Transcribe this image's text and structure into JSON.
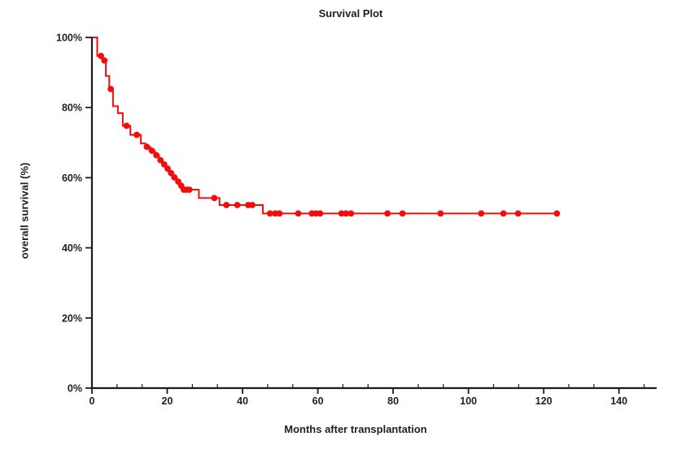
{
  "figure": {
    "title": "Survival Plot",
    "x_axis_label": "Months after transplantation",
    "y_axis_label": "overall survival  (%)"
  },
  "colors": {
    "background": "#ffffff",
    "axis": "#1c1c1c",
    "text": "#1f1f1f",
    "curve": "#f20d0d"
  },
  "chart_data": {
    "type": "line",
    "subtype": "kaplan-meier-step",
    "title": "Survival Plot",
    "xlabel": "Months after transplantation",
    "ylabel": "overall survival (%)",
    "xlim": [
      0,
      150
    ],
    "ylim": [
      0,
      100
    ],
    "x_major_ticks": [
      0,
      20,
      40,
      60,
      80,
      100,
      120,
      140
    ],
    "x_minor_tick_step": 6.6667,
    "y_major_ticks": [
      0,
      20,
      40,
      60,
      80,
      100
    ],
    "y_tick_suffix": "%",
    "grid": false,
    "legend_position": "none",
    "series": [
      {
        "name": "overall survival",
        "color": "#f20d0d",
        "start": [
          0,
          100
        ],
        "steps": [
          [
            1.4,
            94.7
          ],
          [
            2.8,
            93.4
          ],
          [
            3.7,
            89.0
          ],
          [
            4.6,
            85.3
          ],
          [
            5.6,
            80.4
          ],
          [
            6.9,
            78.4
          ],
          [
            8.2,
            74.8
          ],
          [
            10.2,
            72.2
          ],
          [
            13.0,
            69.8
          ],
          [
            14.2,
            68.8
          ],
          [
            15.5,
            67.7
          ],
          [
            16.7,
            66.4
          ],
          [
            17.8,
            65.0
          ],
          [
            18.8,
            63.8
          ],
          [
            19.7,
            62.6
          ],
          [
            20.6,
            61.3
          ],
          [
            21.5,
            60.1
          ],
          [
            22.5,
            58.9
          ],
          [
            23.3,
            57.7
          ],
          [
            24.0,
            56.6
          ],
          [
            28.4,
            54.2
          ],
          [
            33.9,
            52.2
          ],
          [
            45.4,
            49.8
          ]
        ],
        "end_month": 124,
        "censor_markers": [
          [
            2.4,
            94.7
          ],
          [
            3.3,
            93.4
          ],
          [
            5.0,
            85.3
          ],
          [
            9.2,
            74.8
          ],
          [
            11.9,
            72.2
          ],
          [
            14.6,
            68.8
          ],
          [
            15.9,
            67.7
          ],
          [
            17.1,
            66.4
          ],
          [
            18.2,
            65.0
          ],
          [
            19.2,
            63.8
          ],
          [
            20.1,
            62.6
          ],
          [
            21.0,
            61.3
          ],
          [
            21.9,
            60.1
          ],
          [
            22.9,
            58.9
          ],
          [
            23.7,
            57.7
          ],
          [
            24.4,
            56.6
          ],
          [
            25.1,
            56.6
          ],
          [
            25.9,
            56.6
          ],
          [
            32.5,
            54.2
          ],
          [
            35.7,
            52.2
          ],
          [
            38.6,
            52.2
          ],
          [
            41.5,
            52.2
          ],
          [
            42.6,
            52.2
          ],
          [
            47.3,
            49.8
          ],
          [
            48.7,
            49.8
          ],
          [
            49.8,
            49.8
          ],
          [
            54.8,
            49.8
          ],
          [
            58.4,
            49.8
          ],
          [
            59.5,
            49.8
          ],
          [
            60.6,
            49.8
          ],
          [
            66.3,
            49.8
          ],
          [
            67.5,
            49.8
          ],
          [
            68.8,
            49.8
          ],
          [
            78.5,
            49.8
          ],
          [
            82.5,
            49.8
          ],
          [
            92.6,
            49.8
          ],
          [
            103.4,
            49.8
          ],
          [
            109.3,
            49.8
          ],
          [
            113.2,
            49.8
          ],
          [
            123.5,
            49.8
          ]
        ]
      }
    ]
  }
}
